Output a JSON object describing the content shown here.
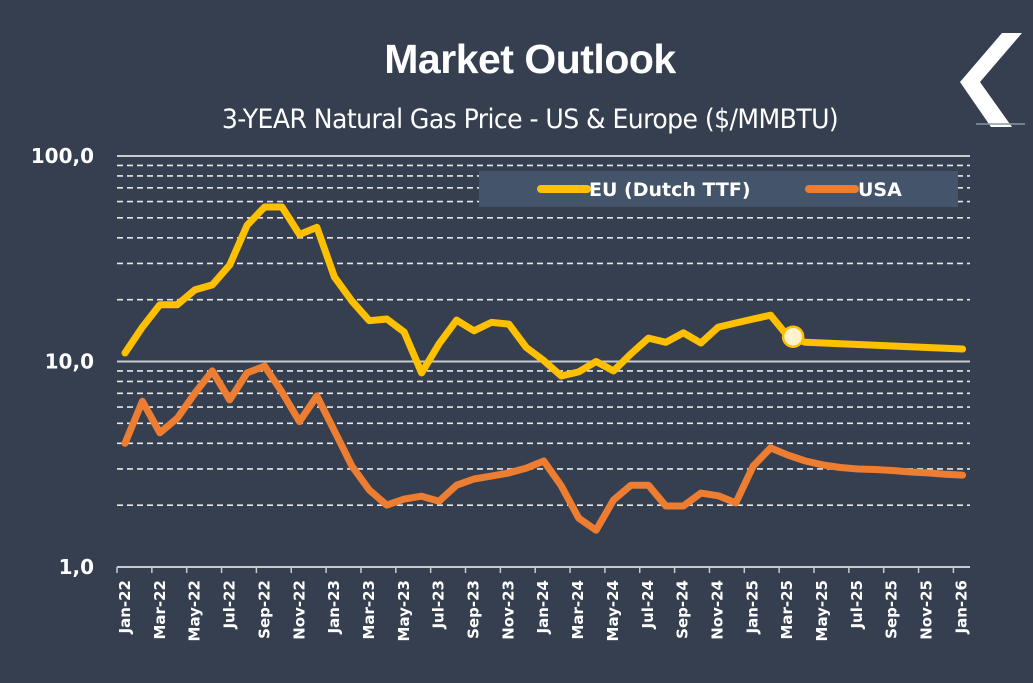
{
  "header": {
    "title": "Market Outlook",
    "subtitle": "3-YEAR Natural Gas Price - US & Europe ($/MMBTU)",
    "back_icon": "chevron-left-icon"
  },
  "colors": {
    "background": "#353f50",
    "eu": "#ffc000",
    "usa": "#ed7d31",
    "legend_bg": "#44546a",
    "marker_fill": "#fff2cc",
    "grid": "#e6e6e6"
  },
  "chart_data": {
    "type": "line",
    "title": "3-YEAR Natural Gas Price - US & Europe ($/MMBTU)",
    "xlabel": "",
    "ylabel": "",
    "yscale": "log",
    "ylim": [
      1,
      100
    ],
    "yticks": [
      "1,0",
      "10,0",
      "100,0"
    ],
    "ytick_values": [
      1,
      10,
      100
    ],
    "grid": true,
    "minor_grid": "dashed",
    "legend_position": "top-right",
    "x": [
      "Jan-22",
      "Feb-22",
      "Mar-22",
      "Apr-22",
      "May-22",
      "Jun-22",
      "Jul-22",
      "Aug-22",
      "Sep-22",
      "Oct-22",
      "Nov-22",
      "Dec-22",
      "Jan-23",
      "Feb-23",
      "Mar-23",
      "Apr-23",
      "May-23",
      "Jun-23",
      "Jul-23",
      "Aug-23",
      "Sep-23",
      "Oct-23",
      "Nov-23",
      "Dec-23",
      "Jan-24",
      "Feb-24",
      "Mar-24",
      "Apr-24",
      "May-24",
      "Jun-24",
      "Jul-24",
      "Aug-24",
      "Sep-24",
      "Oct-24",
      "Nov-24",
      "Dec-24",
      "Jan-25",
      "Feb-25",
      "Mar-25",
      "Apr-25",
      "May-25",
      "Jun-25",
      "Jul-25",
      "Aug-25",
      "Sep-25",
      "Oct-25",
      "Nov-25",
      "Dec-25",
      "Jan-26"
    ],
    "xtick_labels": [
      "Jan-22",
      "Mar-22",
      "May-22",
      "Jul-22",
      "Sep-22",
      "Nov-22",
      "Jan-23",
      "Mar-23",
      "May-23",
      "Jul-23",
      "Sep-23",
      "Nov-23",
      "Jan-24",
      "Mar-24",
      "May-24",
      "Jul-24",
      "Sep-24",
      "Nov-24",
      "Jan-25",
      "Mar-25",
      "May-25",
      "Jul-25",
      "Sep-25",
      "Nov-25",
      "Jan-26"
    ],
    "series": [
      {
        "name": "EU (Dutch TTF)",
        "color": "#ffc000",
        "values": [
          11.0,
          14.7,
          18.9,
          18.9,
          22.3,
          23.6,
          29.5,
          46.0,
          56.5,
          56.5,
          41.5,
          45.0,
          25.8,
          19.7,
          15.8,
          16.1,
          13.9,
          8.8,
          12.2,
          15.9,
          14.1,
          15.5,
          15.2,
          11.7,
          10.1,
          8.5,
          8.9,
          10.0,
          9.0,
          10.9,
          13.0,
          12.4,
          13.8,
          12.3,
          14.7,
          15.4,
          16.1,
          16.8,
          13.2,
          12.4,
          12.3,
          12.2,
          12.1,
          12.0,
          11.9,
          11.8,
          11.7,
          11.6,
          11.5
        ],
        "highlight": {
          "x": "Mar-25",
          "value": 13.2
        }
      },
      {
        "name": "USA",
        "color": "#ed7d31",
        "values": [
          4.0,
          6.4,
          4.5,
          5.3,
          7.0,
          9.0,
          6.5,
          8.8,
          9.5,
          7.1,
          5.1,
          6.8,
          4.6,
          3.1,
          2.37,
          2.0,
          2.14,
          2.21,
          2.09,
          2.5,
          2.68,
          2.77,
          2.87,
          3.03,
          3.28,
          2.48,
          1.73,
          1.51,
          2.12,
          2.5,
          2.5,
          1.98,
          1.98,
          2.29,
          2.22,
          2.05,
          3.1,
          3.8,
          3.5,
          3.28,
          3.14,
          3.05,
          3.0,
          2.98,
          2.95,
          2.9,
          2.87,
          2.83,
          2.8
        ]
      }
    ]
  }
}
